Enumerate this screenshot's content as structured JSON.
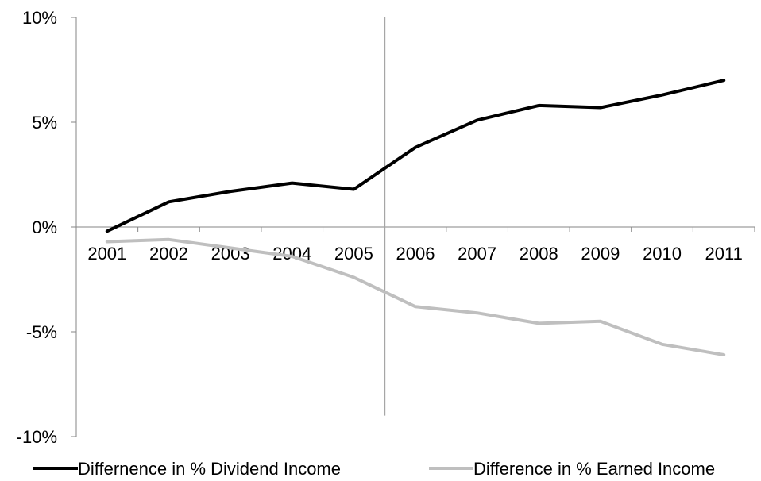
{
  "chart_data": {
    "type": "line",
    "title": "",
    "xlabel": "",
    "ylabel": "",
    "categories": [
      "2001",
      "2002",
      "2003",
      "2004",
      "2005",
      "2006",
      "2007",
      "2008",
      "2009",
      "2010",
      "2011"
    ],
    "series": [
      {
        "name": "Differnence in % Dividend Income",
        "color": "#000000",
        "values": [
          -0.2,
          1.2,
          1.7,
          2.1,
          1.8,
          3.8,
          5.1,
          5.8,
          5.7,
          6.3,
          7.0
        ]
      },
      {
        "name": "Difference in % Earned Income",
        "color": "#bfbfbf",
        "values": [
          -0.7,
          -0.6,
          -1.0,
          -1.4,
          -2.4,
          -3.8,
          -4.1,
          -4.6,
          -4.5,
          -5.6,
          -6.1
        ]
      }
    ],
    "ylim": [
      -10,
      10
    ],
    "yticks": [
      10,
      5,
      0,
      -5,
      -10
    ],
    "ytick_labels": [
      "10%",
      "5%",
      "0%",
      "-5%",
      "-10%"
    ],
    "reference_line": {
      "between": [
        "2005",
        "2006"
      ],
      "color": "#a6a6a6"
    },
    "grid": false,
    "legend_position": "bottom"
  }
}
